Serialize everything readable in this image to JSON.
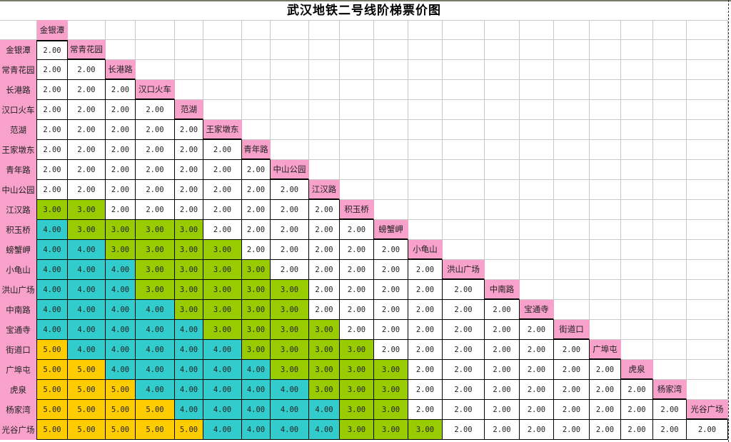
{
  "title": "武汉地铁二号线阶梯票价图",
  "colors": {
    "fare_2": "#ffffff",
    "fare_3": "#99cc00",
    "fare_4": "#33cccc",
    "fare_5": "#ffcc00",
    "station_label": "#f7a1cb"
  },
  "stations": [
    "金银潭",
    "常青花园",
    "长港路",
    "汉口火车",
    "范湖",
    "王家墩东",
    "青年路",
    "中山公园",
    "江汉路",
    "积玉桥",
    "螃蟹岬",
    "小龟山",
    "洪山广场",
    "中南路",
    "宝通寺",
    "街道口",
    "广埠屯",
    "虎泉",
    "杨家湾",
    "光谷广场"
  ],
  "fare_matrix": [
    [
      "2.00"
    ],
    [
      "2.00",
      "2.00"
    ],
    [
      "2.00",
      "2.00",
      "2.00"
    ],
    [
      "2.00",
      "2.00",
      "2.00",
      "2.00"
    ],
    [
      "2.00",
      "2.00",
      "2.00",
      "2.00",
      "2.00"
    ],
    [
      "2.00",
      "2.00",
      "2.00",
      "2.00",
      "2.00",
      "2.00"
    ],
    [
      "2.00",
      "2.00",
      "2.00",
      "2.00",
      "2.00",
      "2.00",
      "2.00"
    ],
    [
      "2.00",
      "2.00",
      "2.00",
      "2.00",
      "2.00",
      "2.00",
      "2.00",
      "2.00"
    ],
    [
      "3.00",
      "3.00",
      "2.00",
      "2.00",
      "2.00",
      "2.00",
      "2.00",
      "2.00",
      "2.00"
    ],
    [
      "4.00",
      "3.00",
      "3.00",
      "3.00",
      "3.00",
      "2.00",
      "2.00",
      "2.00",
      "2.00",
      "2.00"
    ],
    [
      "4.00",
      "4.00",
      "3.00",
      "3.00",
      "3.00",
      "3.00",
      "2.00",
      "2.00",
      "2.00",
      "2.00",
      "2.00"
    ],
    [
      "4.00",
      "4.00",
      "4.00",
      "3.00",
      "3.00",
      "3.00",
      "3.00",
      "2.00",
      "2.00",
      "2.00",
      "2.00",
      "2.00"
    ],
    [
      "4.00",
      "4.00",
      "4.00",
      "3.00",
      "3.00",
      "3.00",
      "3.00",
      "3.00",
      "2.00",
      "2.00",
      "2.00",
      "2.00",
      "2.00"
    ],
    [
      "4.00",
      "4.00",
      "4.00",
      "4.00",
      "3.00",
      "3.00",
      "3.00",
      "3.00",
      "2.00",
      "2.00",
      "2.00",
      "2.00",
      "2.00",
      "2.00"
    ],
    [
      "4.00",
      "4.00",
      "4.00",
      "4.00",
      "4.00",
      "3.00",
      "3.00",
      "3.00",
      "3.00",
      "2.00",
      "2.00",
      "2.00",
      "2.00",
      "2.00",
      "2.00"
    ],
    [
      "5.00",
      "4.00",
      "4.00",
      "4.00",
      "4.00",
      "4.00",
      "3.00",
      "3.00",
      "3.00",
      "3.00",
      "2.00",
      "2.00",
      "2.00",
      "2.00",
      "2.00",
      "2.00"
    ],
    [
      "5.00",
      "5.00",
      "4.00",
      "4.00",
      "4.00",
      "4.00",
      "4.00",
      "3.00",
      "3.00",
      "3.00",
      "3.00",
      "2.00",
      "2.00",
      "2.00",
      "2.00",
      "2.00",
      "2.00"
    ],
    [
      "5.00",
      "5.00",
      "5.00",
      "4.00",
      "4.00",
      "4.00",
      "4.00",
      "4.00",
      "3.00",
      "3.00",
      "3.00",
      "2.00",
      "2.00",
      "2.00",
      "2.00",
      "2.00",
      "2.00",
      "2.00"
    ],
    [
      "5.00",
      "5.00",
      "5.00",
      "5.00",
      "4.00",
      "4.00",
      "4.00",
      "4.00",
      "4.00",
      "3.00",
      "3.00",
      "2.00",
      "2.00",
      "2.00",
      "2.00",
      "2.00",
      "2.00",
      "2.00",
      "2.00"
    ],
    [
      "5.00",
      "5.00",
      "5.00",
      "5.00",
      "5.00",
      "4.00",
      "4.00",
      "4.00",
      "4.00",
      "3.00",
      "3.00",
      "3.00",
      "2.00",
      "2.00",
      "2.00",
      "2.00",
      "2.00",
      "2.00",
      "2.00",
      "2.00"
    ]
  ]
}
